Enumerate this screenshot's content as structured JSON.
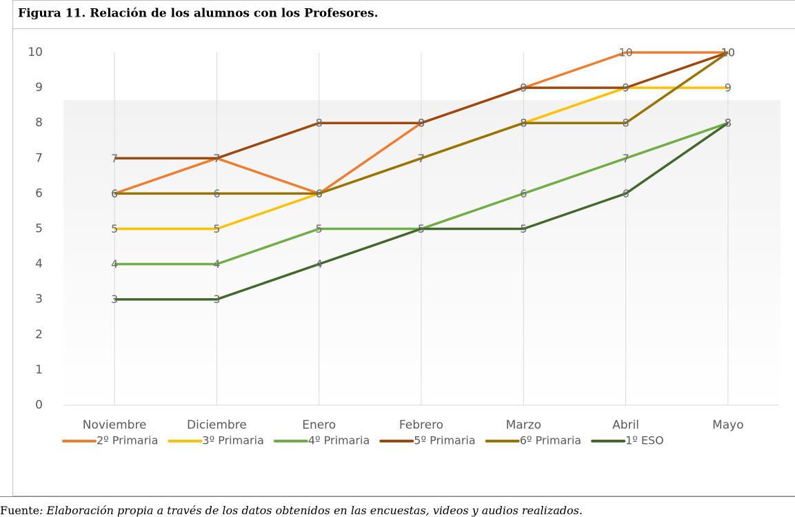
{
  "title": "Figura 11. Relación de los alumnos con los Profesores.",
  "source_label": "Fuente",
  "source_text": ": Elaboración propia a través de los datos obtenidos en las encuestas, videos y audios realizados.",
  "chart_data": {
    "type": "line",
    "categories": [
      "Noviembre",
      "Diciembre",
      "Enero",
      "Febrero",
      "Marzo",
      "Abril",
      "Mayo"
    ],
    "series": [
      {
        "name": "2º Primaria",
        "color": "#ED7D31",
        "values": [
          6,
          7,
          6,
          8,
          9,
          10,
          10
        ]
      },
      {
        "name": "3º Primaria",
        "color": "#FFC000",
        "values": [
          5,
          5,
          6,
          7,
          8,
          9,
          9
        ]
      },
      {
        "name": "4º Primaria",
        "color": "#70AD47",
        "values": [
          4,
          4,
          5,
          5,
          6,
          7,
          8
        ]
      },
      {
        "name": "5º Primaria",
        "color": "#9E480E",
        "values": [
          7,
          7,
          8,
          8,
          9,
          9,
          10
        ]
      },
      {
        "name": "6º Primaria",
        "color": "#997300",
        "values": [
          6,
          6,
          6,
          7,
          8,
          8,
          10
        ]
      },
      {
        "name": "1º ESO",
        "color": "#43682B",
        "values": [
          3,
          3,
          4,
          5,
          5,
          6,
          8
        ]
      }
    ],
    "ylim": [
      0,
      10
    ],
    "yticks": [
      0,
      1,
      2,
      3,
      4,
      5,
      6,
      7,
      8,
      9,
      10
    ],
    "grid": "x",
    "legend": "bottom",
    "data_labels": true
  }
}
